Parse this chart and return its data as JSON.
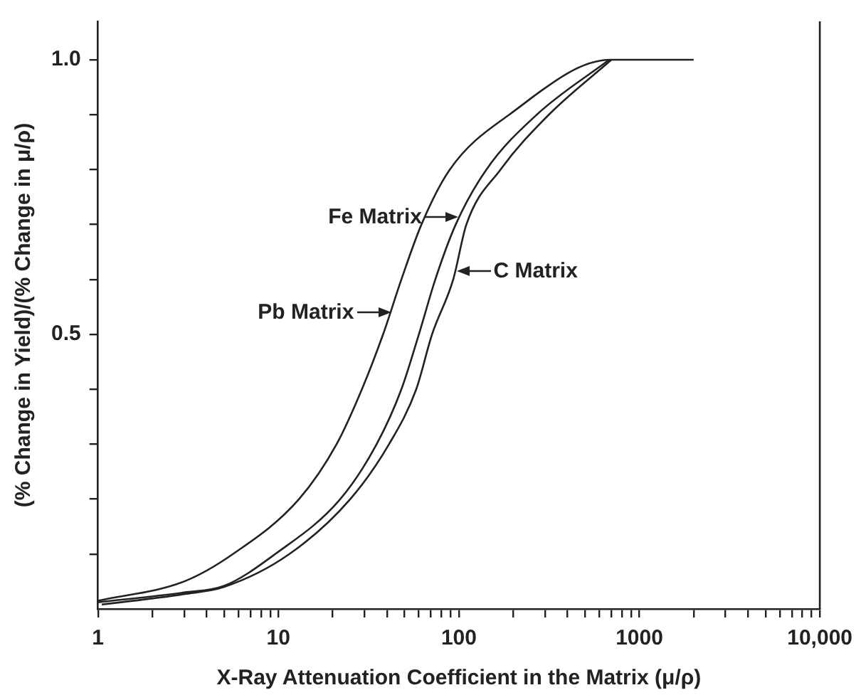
{
  "chart_data": {
    "type": "line",
    "xlabel": "X-Ray Attenuation Coefficient in the Matrix (μ/ρ)",
    "ylabel": "(% Change in Yield)/(% Change in μ/ρ)",
    "log": "x",
    "grid": false,
    "legend": false,
    "marker": "none",
    "line_style": "solid",
    "xlim": [
      1,
      10000
    ],
    "ylim": [
      0,
      1.07
    ],
    "xticks": [
      1,
      {
        "value": 2,
        "label": null
      },
      {
        "value": 3,
        "label": null
      },
      {
        "value": 4,
        "label": null
      },
      {
        "value": 5,
        "label": null
      },
      {
        "value": 6,
        "label": null
      },
      {
        "value": 7,
        "label": null
      },
      {
        "value": 8,
        "label": null
      },
      {
        "value": 9,
        "label": null
      },
      10,
      {
        "value": 20,
        "label": null
      },
      {
        "value": 30,
        "label": null
      },
      {
        "value": 40,
        "label": null
      },
      {
        "value": 50,
        "label": null
      },
      {
        "value": 60,
        "label": null
      },
      {
        "value": 70,
        "label": null
      },
      {
        "value": 80,
        "label": null
      },
      {
        "value": 90,
        "label": null
      },
      100,
      {
        "value": 200,
        "label": null
      },
      {
        "value": 300,
        "label": null
      },
      {
        "value": 400,
        "label": null
      },
      {
        "value": 500,
        "label": null
      },
      {
        "value": 600,
        "label": null
      },
      {
        "value": 700,
        "label": null
      },
      {
        "value": 800,
        "label": null
      },
      {
        "value": 900,
        "label": null
      },
      1000,
      {
        "value": 2000,
        "label": null
      },
      {
        "value": 3000,
        "label": null
      },
      {
        "value": 4000,
        "label": null
      },
      {
        "value": 5000,
        "label": null
      },
      {
        "value": 6000,
        "label": null
      },
      {
        "value": 7000,
        "label": null
      },
      {
        "value": 8000,
        "label": null
      },
      {
        "value": 9000,
        "label": null
      },
      {
        "value": 10000,
        "label": "10,000"
      }
    ],
    "yticks": [
      {
        "value": 0.1,
        "label": null
      },
      {
        "value": 0.2,
        "label": null
      },
      {
        "value": 0.3,
        "label": null
      },
      {
        "value": 0.4,
        "label": null
      },
      {
        "value": 0.5,
        "label": "0.5"
      },
      {
        "value": 0.6,
        "label": null
      },
      {
        "value": 0.7,
        "label": null
      },
      {
        "value": 0.8,
        "label": null
      },
      {
        "value": 0.9,
        "label": null
      },
      {
        "value": 1.0,
        "label": "1.0"
      }
    ],
    "series": [
      {
        "color": "#222222",
        "x": [
          1,
          3,
          5.6,
          13,
          21,
          29,
          38,
          48,
          62,
          89,
          190,
          690,
          2000
        ],
        "values": [
          0.015,
          0.05,
          0.1,
          0.2,
          0.3,
          0.4,
          0.5,
          0.6,
          0.7,
          0.8,
          0.9,
          1.0,
          1.0
        ]
      },
      {
        "color": "#222222",
        "x": [
          1,
          3,
          5,
          9.6,
          22,
          35,
          48,
          60,
          74,
          96,
          142,
          270,
          680
        ],
        "values": [
          0.012,
          0.03,
          0.042,
          0.1,
          0.2,
          0.3,
          0.4,
          0.5,
          0.6,
          0.7,
          0.8,
          0.9,
          1.0
        ]
      },
      {
        "color": "#222222",
        "x": [
          1.05,
          3,
          5,
          11.5,
          25,
          41,
          58,
          71,
          93,
          110,
          170,
          315,
          700
        ],
        "values": [
          0.008,
          0.027,
          0.04,
          0.1,
          0.2,
          0.3,
          0.4,
          0.5,
          0.6,
          0.7,
          0.8,
          0.9,
          1.0
        ]
      }
    ],
    "annotations": [
      {
        "text": "Fe Matrix",
        "x": 100,
        "y": 0.715
      },
      {
        "text": "C Matrix",
        "x": 97,
        "y": 0.615
      },
      {
        "text": "Pb Matrix",
        "x": 42,
        "y": 0.54
      }
    ]
  }
}
